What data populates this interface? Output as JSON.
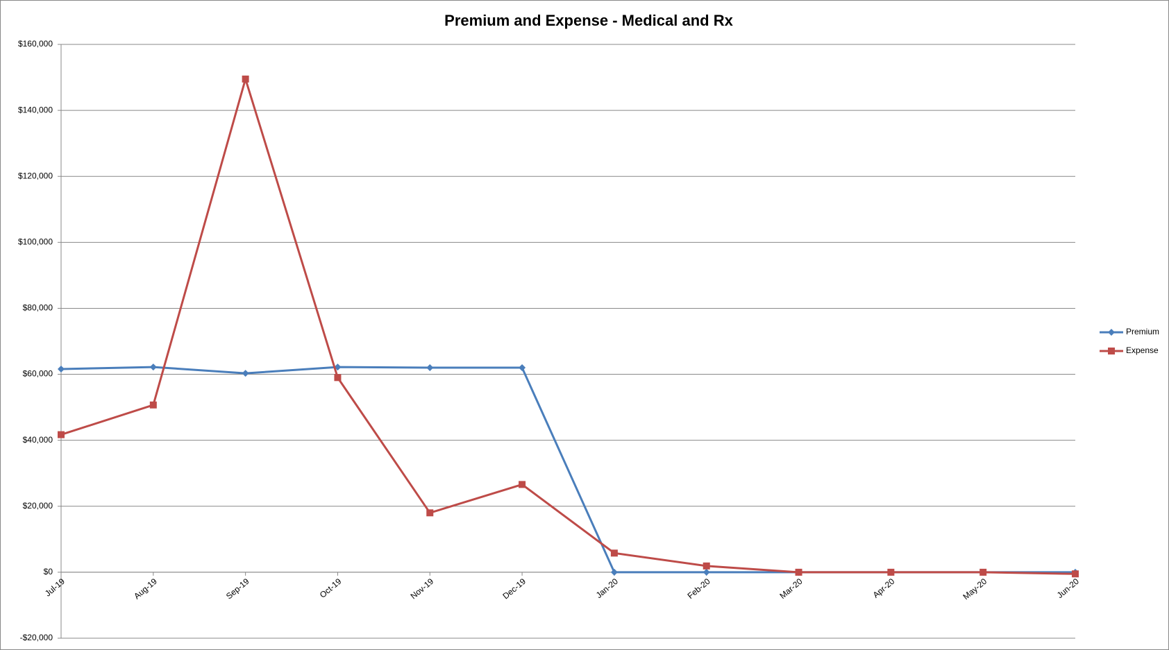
{
  "chart_data": {
    "type": "line",
    "title": "Premium and Expense - Medical and Rx",
    "categories": [
      "Jul-19",
      "Aug-19",
      "Sep-19",
      "Oct-19",
      "Nov-19",
      "Dec-19",
      "Jan-20",
      "Feb-20",
      "Mar-20",
      "Apr-20",
      "May-20",
      "Jun-20"
    ],
    "series": [
      {
        "name": "Premium",
        "color": "#4a7ebb",
        "marker": "diamond",
        "values": [
          61600,
          62200,
          60300,
          62200,
          62000,
          62000,
          0,
          0,
          0,
          0,
          0,
          0
        ]
      },
      {
        "name": "Expense",
        "color": "#be4b48",
        "marker": "square",
        "values": [
          41700,
          50700,
          149500,
          59000,
          18000,
          26600,
          5800,
          1900,
          0,
          0,
          0,
          -500
        ]
      }
    ],
    "ylim": [
      -20000,
      160000
    ],
    "yticks": [
      {
        "value": -20000,
        "label": "-$20,000"
      },
      {
        "value": 0,
        "label": "$0"
      },
      {
        "value": 20000,
        "label": "$20,000"
      },
      {
        "value": 40000,
        "label": "$40,000"
      },
      {
        "value": 60000,
        "label": "$60,000"
      },
      {
        "value": 80000,
        "label": "$80,000"
      },
      {
        "value": 100000,
        "label": "$100,000"
      },
      {
        "value": 120000,
        "label": "$120,000"
      },
      {
        "value": 140000,
        "label": "$140,000"
      },
      {
        "value": 160000,
        "label": "$160,000"
      }
    ],
    "grid": true,
    "legend": "right"
  }
}
